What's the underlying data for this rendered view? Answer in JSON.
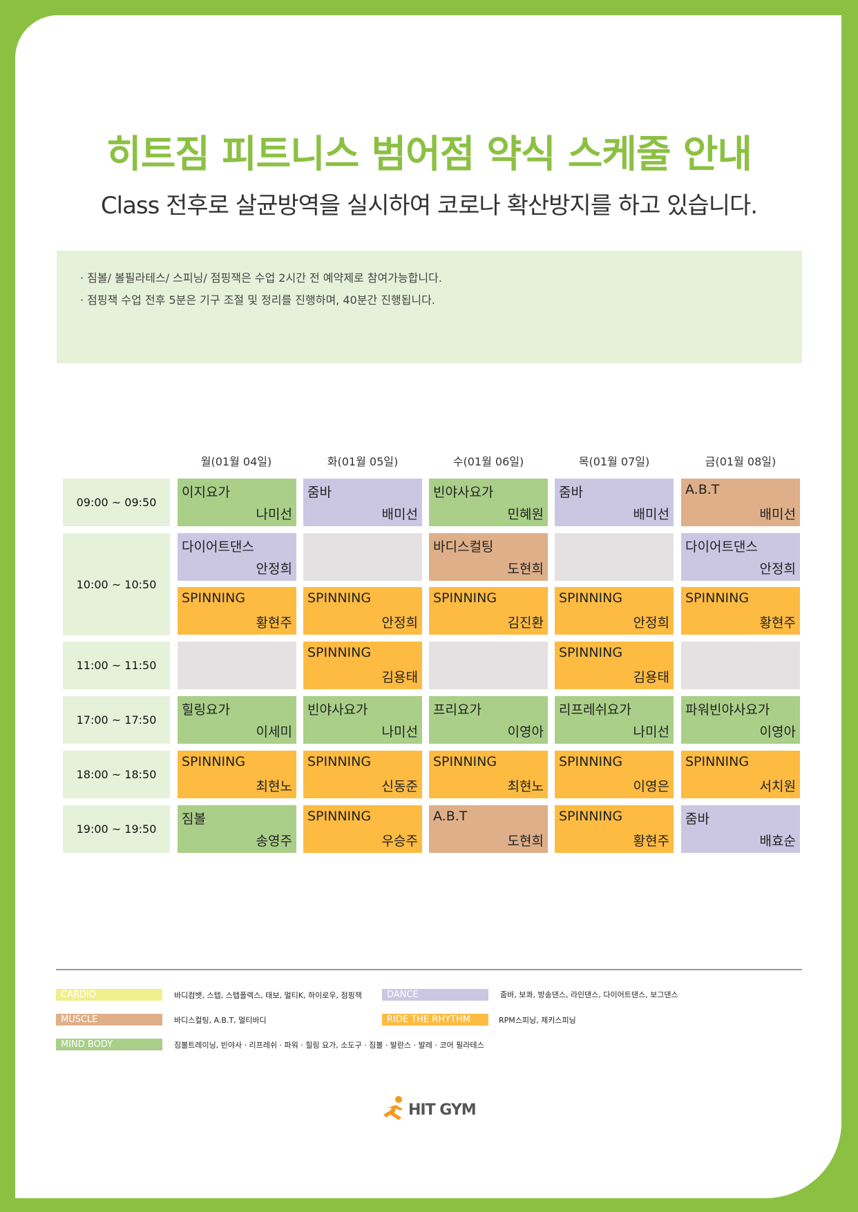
{
  "title": "히트짐 피트니스 범어점 약식 스케줄 안내",
  "subtitle": "Class 전후로 살균방역을 실시하여 코로나 확산방지를 하고 있습니다.",
  "notice": [
    "· 짐볼/ 볼필라테스/ 스피닝/ 점핑잭은 수업 2시간 전 예약제로 참여가능합니다.",
    "· 점핑잭 수업 전후 5분은 기구 조절 및 정리를 진행하며, 40분간 진행됩니다."
  ],
  "days": [
    "월(01월 04일)",
    "화(01월 05일)",
    "수(01월 06일)",
    "목(01월 07일)",
    "금(01월 08일)"
  ],
  "times": [
    "09:00 ~ 09:50",
    "10:00 ~ 10:50",
    "11:00 ~ 11:50",
    "17:00 ~ 17:50",
    "18:00 ~ 18:50",
    "19:00 ~ 19:50"
  ],
  "schedule": [
    [
      {
        "name": "이지요가",
        "instructor": "나미선",
        "color": "#a9cf88"
      },
      {
        "name": "줌바",
        "instructor": "배미선",
        "color": "#cbc6e2"
      },
      {
        "name": "빈야사요가",
        "instructor": "민혜원",
        "color": "#a9cf88"
      },
      {
        "name": "줌바",
        "instructor": "배미선",
        "color": "#cbc6e2"
      },
      {
        "name": "A.B.T",
        "instructor": "배미선",
        "color": "#deaf88"
      }
    ],
    [
      {
        "name": "다이어트댄스",
        "instructor": "안정희",
        "color": "#cbc6e2"
      },
      {
        "name": "",
        "instructor": "",
        "color": "#e5e0e1"
      },
      {
        "name": "바디스컬팅",
        "instructor": "도현희",
        "color": "#deaf88"
      },
      {
        "name": "",
        "instructor": "",
        "color": "#e5e0e1"
      },
      {
        "name": "다이어트댄스",
        "instructor": "안정희",
        "color": "#cbc6e2"
      }
    ],
    [
      {
        "name": "SPINNING",
        "instructor": "황현주",
        "color": "#fdbb42"
      },
      {
        "name": "SPINNING",
        "instructor": "안정희",
        "color": "#fdbb42"
      },
      {
        "name": "SPINNING",
        "instructor": "김진환",
        "color": "#fdbb42"
      },
      {
        "name": "SPINNING",
        "instructor": "안정희",
        "color": "#fdbb42"
      },
      {
        "name": "SPINNING",
        "instructor": "황현주",
        "color": "#fdbb42"
      }
    ],
    [
      {
        "name": "",
        "instructor": "",
        "color": "#e5e0e1"
      },
      {
        "name": "SPINNING",
        "instructor": "김용태",
        "color": "#fdbb42"
      },
      {
        "name": "",
        "instructor": "",
        "color": "#e5e0e1"
      },
      {
        "name": "SPINNING",
        "instructor": "김용태",
        "color": "#fdbb42"
      },
      {
        "name": "",
        "instructor": "",
        "color": "#e5e0e1"
      }
    ],
    [
      {
        "name": "힐링요가",
        "instructor": "이세미",
        "color": "#a9cf88"
      },
      {
        "name": "빈야사요가",
        "instructor": "나미선",
        "color": "#a9cf88"
      },
      {
        "name": "프리요가",
        "instructor": "이영아",
        "color": "#a9cf88"
      },
      {
        "name": "리프레쉬요가",
        "instructor": "나미선",
        "color": "#a9cf88"
      },
      {
        "name": "파워빈야사요가",
        "instructor": "이영아",
        "color": "#a9cf88"
      }
    ],
    [
      {
        "name": "SPINNING",
        "instructor": "최현노",
        "color": "#fdbb42"
      },
      {
        "name": "SPINNING",
        "instructor": "신동준",
        "color": "#fdbb42"
      },
      {
        "name": "SPINNING",
        "instructor": "최현노",
        "color": "#fdbb42"
      },
      {
        "name": "SPINNING",
        "instructor": "이영은",
        "color": "#fdbb42"
      },
      {
        "name": "SPINNING",
        "instructor": "서치원",
        "color": "#fdbb42"
      }
    ],
    [
      {
        "name": "짐볼",
        "instructor": "송영주",
        "color": "#a9cf88"
      },
      {
        "name": "SPINNING",
        "instructor": "우승주",
        "color": "#fdbb42"
      },
      {
        "name": "A.B.T",
        "instructor": "도현희",
        "color": "#deaf88"
      },
      {
        "name": "SPINNING",
        "instructor": "황현주",
        "color": "#fdbb42"
      },
      {
        "name": "줌바",
        "instructor": "배효순",
        "color": "#cbc6e2"
      }
    ]
  ],
  "legend": [
    {
      "label": "CARDIO",
      "text": "바디컴뱃, 스텝, 스텝플렉스, 태보, 멀티K, 하이로우, 점핑잭",
      "color": "#f2ef8f"
    },
    {
      "label": "DANCE",
      "text": "줌바, 보콰, 방송댄스, 라인댄스, 다이어트댄스, 보그댄스",
      "color": "#cbc6e2"
    },
    {
      "label": "MUSCLE",
      "text": "바디스컬팅, A.B.T, 멀티바디",
      "color": "#deaf88"
    },
    {
      "label": "RIDE THE RHYTHM",
      "text": "RPM스피닝, 제키스피닝",
      "color": "#fdbb42"
    },
    {
      "label": "MIND BODY",
      "text": "짐볼트레이닝, 빈야사 · 리프레쉬 · 파워 · 힐링 요가, 소도구 · 짐볼 · 발란스 · 발레 · 코어 필라테스",
      "color": "#a9cf88"
    }
  ],
  "logo": {
    "text": "HIT GYM",
    "icon": "running-figure-icon",
    "icon_color": "#f39a1e"
  },
  "colors": {
    "accent": "#8cc043",
    "notice_bg": "#e6f1da"
  }
}
